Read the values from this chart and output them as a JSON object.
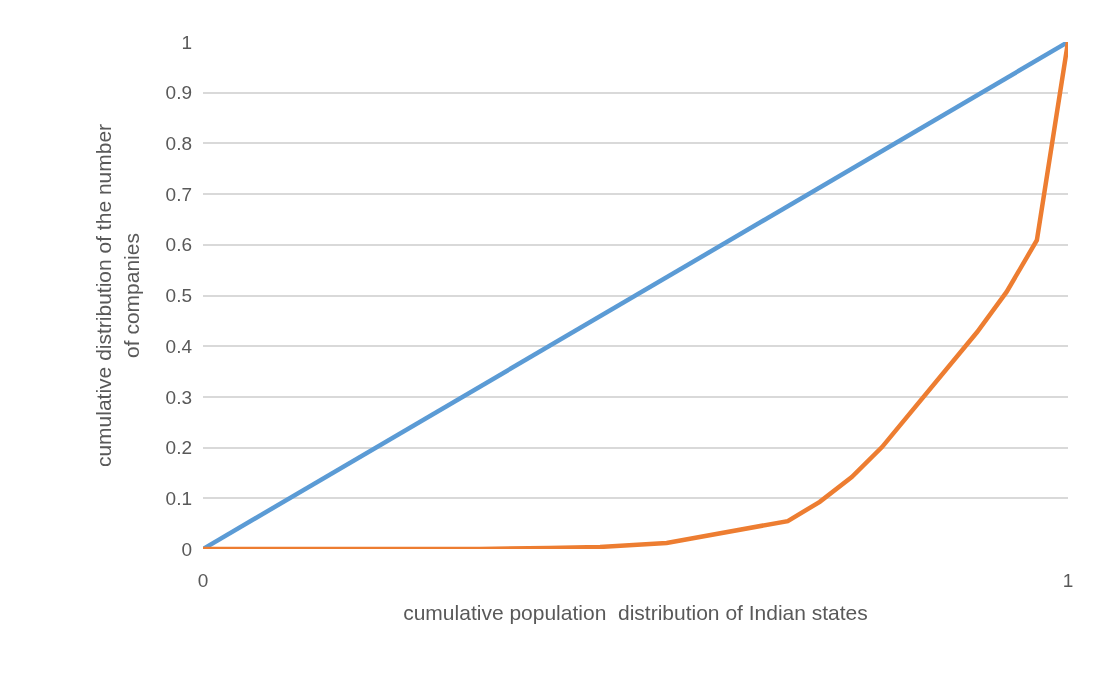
{
  "chart_data": {
    "type": "line",
    "xlabel": "cumulative population  distribution of Indian states",
    "ylabel": "cumulative distribution of the number of companies",
    "xlim": [
      0,
      1
    ],
    "xticks": [
      0,
      1
    ],
    "ylim": [
      0,
      1
    ],
    "yticks": [
      0,
      0.1,
      0.2,
      0.3,
      0.4,
      0.5,
      0.6,
      0.7,
      0.8,
      0.9,
      1
    ],
    "grid": "y",
    "marker": "none",
    "line_style": "solid",
    "series": [
      {
        "color": "#5b9bd5",
        "x": [
          0,
          1
        ],
        "values": [
          0,
          1
        ]
      },
      {
        "color": "#ed7d31",
        "x": [
          0,
          0.32,
          0.4,
          0.459,
          0.536,
          0.676,
          0.713,
          0.75,
          0.785,
          0.895,
          0.929,
          0.964,
          1
        ],
        "values": [
          0,
          0,
          0.002,
          0.004,
          0.012,
          0.055,
          0.093,
          0.142,
          0.201,
          0.428,
          0.507,
          0.609,
          1
        ]
      }
    ]
  }
}
